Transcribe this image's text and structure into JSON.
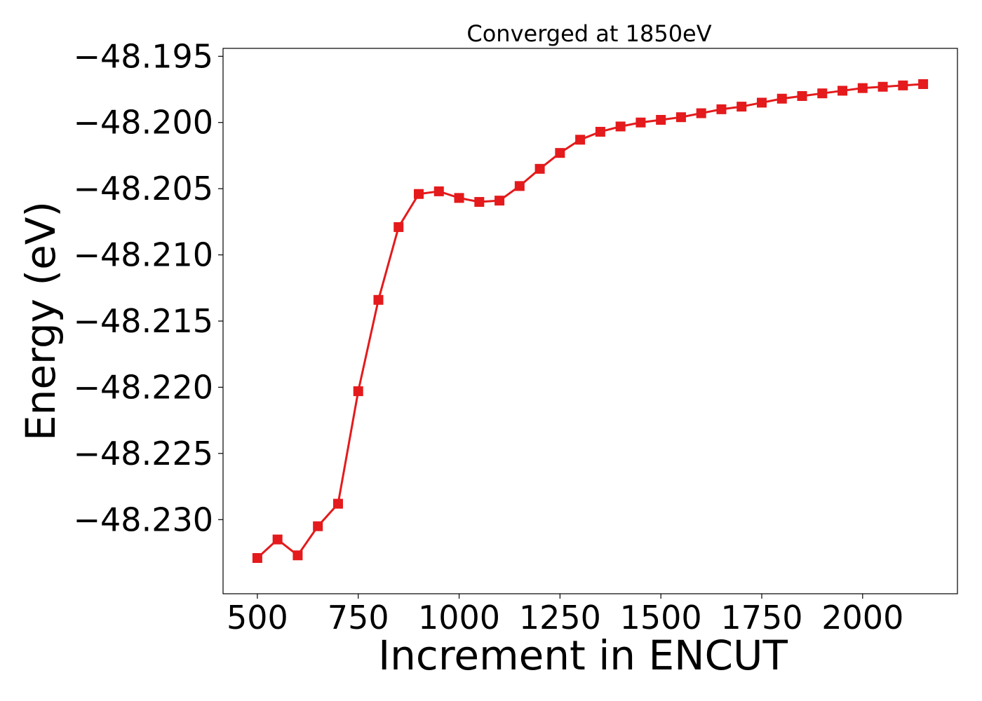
{
  "chart_data": {
    "type": "line",
    "title": "Converged at 1850eV",
    "xlabel": "Increment in ENCUT",
    "ylabel": "Energy (eV)",
    "xlim": [
      415,
      2235
    ],
    "ylim": [
      -48.2356,
      -48.1944
    ],
    "x_ticks": [
      500,
      750,
      1000,
      1250,
      1500,
      1750,
      2000
    ],
    "x_tick_labels": [
      "500",
      "750",
      "1000",
      "1250",
      "1500",
      "1750",
      "2000"
    ],
    "y_ticks": [
      -48.195,
      -48.2,
      -48.205,
      -48.21,
      -48.215,
      -48.22,
      -48.225,
      -48.23
    ],
    "y_tick_labels": [
      "−48.195",
      "−48.200",
      "−48.205",
      "−48.210",
      "−48.215",
      "−48.220",
      "−48.225",
      "−48.230"
    ],
    "grid": false,
    "series": [
      {
        "color": "#e41a1c",
        "marker": "square",
        "x": [
          500,
          550,
          600,
          650,
          700,
          750,
          800,
          850,
          900,
          950,
          1000,
          1050,
          1100,
          1150,
          1200,
          1250,
          1300,
          1350,
          1400,
          1450,
          1500,
          1550,
          1600,
          1650,
          1700,
          1750,
          1800,
          1850,
          1900,
          1950,
          2000,
          2050,
          2100,
          2150
        ],
        "y": [
          -48.2329,
          -48.2315,
          -48.2327,
          -48.2305,
          -48.2288,
          -48.2203,
          -48.2134,
          -48.2079,
          -48.2054,
          -48.2052,
          -48.2057,
          -48.206,
          -48.2059,
          -48.2048,
          -48.2035,
          -48.2023,
          -48.2013,
          -48.2007,
          -48.2003,
          -48.2,
          -48.1998,
          -48.1996,
          -48.1993,
          -48.199,
          -48.1988,
          -48.1985,
          -48.1982,
          -48.198,
          -48.1978,
          -48.1976,
          -48.1974,
          -48.1973,
          -48.1972,
          -48.1971
        ]
      }
    ]
  }
}
